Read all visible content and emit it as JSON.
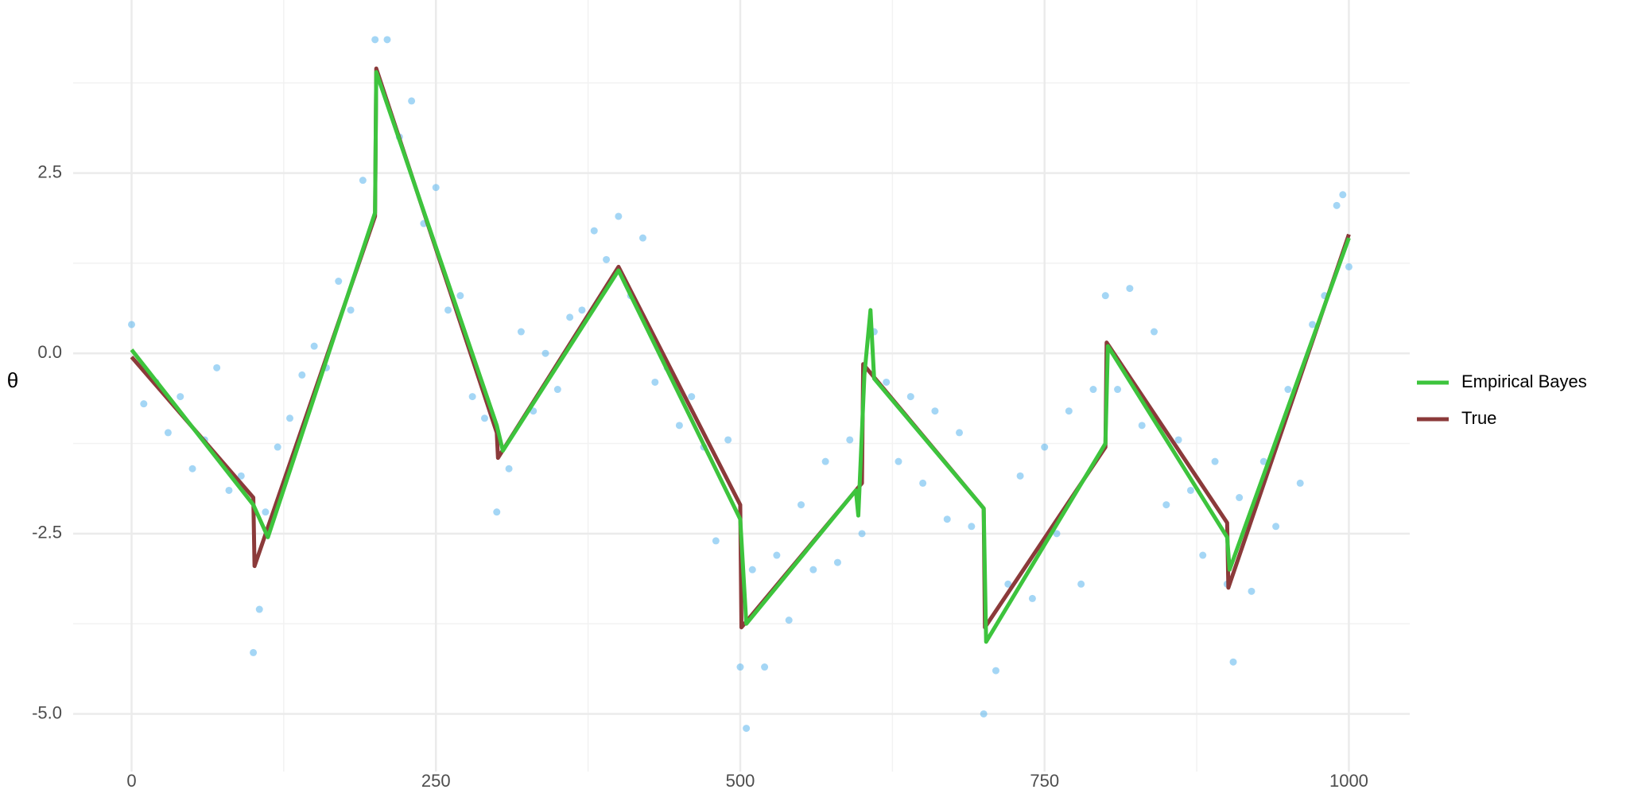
{
  "chart_data": {
    "type": "line",
    "ylabel": "θ",
    "xlim": [
      -48,
      1050
    ],
    "ylim": [
      -5.8,
      4.9
    ],
    "xticks": [
      0,
      250,
      500,
      750,
      1000
    ],
    "yticks": [
      {
        "value": -5,
        "label": "-5.0"
      },
      {
        "value": -2.5,
        "label": "-2.5"
      },
      {
        "value": 0,
        "label": "0.0"
      },
      {
        "value": 2.5,
        "label": "2.5"
      }
    ],
    "x_minor": [
      125,
      375,
      625,
      875
    ],
    "y_minor": [
      -3.75,
      -1.25,
      1.25,
      3.75
    ],
    "grid": true,
    "legend": "right",
    "points": {
      "color": "#5ab4ec",
      "opacity": 0.55,
      "x": [
        0,
        10,
        20,
        30,
        40,
        50,
        60,
        70,
        80,
        90,
        100,
        105,
        110,
        120,
        130,
        140,
        150,
        160,
        170,
        180,
        190,
        200,
        210,
        220,
        230,
        240,
        250,
        260,
        270,
        280,
        290,
        300,
        310,
        320,
        330,
        340,
        350,
        360,
        370,
        380,
        390,
        400,
        410,
        420,
        430,
        440,
        450,
        460,
        470,
        480,
        490,
        500,
        505,
        510,
        520,
        530,
        540,
        550,
        560,
        570,
        580,
        590,
        600,
        610,
        620,
        630,
        640,
        650,
        660,
        670,
        680,
        690,
        700,
        710,
        720,
        730,
        740,
        750,
        760,
        770,
        780,
        790,
        800,
        810,
        820,
        830,
        840,
        850,
        860,
        870,
        880,
        890,
        900,
        905,
        910,
        920,
        930,
        940,
        950,
        960,
        970,
        980,
        990,
        995,
        1000
      ],
      "y": [
        0.4,
        -0.7,
        -0.4,
        -1.1,
        -0.6,
        -1.6,
        -1.2,
        -0.2,
        -1.9,
        -1.7,
        -4.15,
        -3.55,
        -2.2,
        -1.3,
        -0.9,
        -0.3,
        0.1,
        -0.2,
        1.0,
        0.6,
        2.4,
        4.35,
        4.35,
        3.0,
        3.5,
        1.8,
        2.3,
        0.6,
        0.8,
        -0.6,
        -0.9,
        -2.2,
        -1.6,
        0.3,
        -0.8,
        0.0,
        -0.5,
        0.5,
        0.6,
        1.7,
        1.3,
        1.9,
        0.8,
        1.6,
        -0.4,
        -0.2,
        -1.0,
        -0.6,
        -1.3,
        -2.6,
        -1.2,
        -4.35,
        -5.2,
        -3.0,
        -4.35,
        -2.8,
        -3.7,
        -2.1,
        -3.0,
        -1.5,
        -2.9,
        -1.2,
        -2.5,
        0.3,
        -0.4,
        -1.5,
        -0.6,
        -1.8,
        -0.8,
        -2.3,
        -1.1,
        -2.4,
        -5.0,
        -4.4,
        -3.2,
        -1.7,
        -3.4,
        -1.3,
        -2.5,
        -0.8,
        -3.2,
        -0.5,
        0.8,
        -0.5,
        0.9,
        -1.0,
        0.3,
        -2.1,
        -1.2,
        -1.9,
        -2.8,
        -1.5,
        -3.2,
        -4.28,
        -2.0,
        -3.3,
        -1.5,
        -2.4,
        -0.5,
        -1.8,
        0.4,
        0.8,
        2.05,
        2.2,
        1.2
      ]
    },
    "series": [
      {
        "name": "Empirical Bayes",
        "color": "#3dc43d",
        "x": [
          0,
          100,
          112,
          200,
          201,
          300,
          305,
          400,
          500,
          505,
          595,
          597,
          602,
          607,
          610,
          700,
          702,
          800,
          802,
          900,
          902,
          1000
        ],
        "values": [
          0.05,
          -2.1,
          -2.55,
          1.95,
          3.9,
          -1.0,
          -1.35,
          1.15,
          -2.3,
          -3.75,
          -1.9,
          -2.25,
          -0.3,
          0.6,
          -0.35,
          -2.15,
          -4.0,
          -1.25,
          0.1,
          -2.55,
          -3.0,
          1.6
        ]
      },
      {
        "name": "True",
        "color": "#8b3a3a",
        "x": [
          0,
          100,
          101,
          200,
          201,
          300,
          301,
          400,
          500,
          501,
          600,
          601,
          700,
          701,
          800,
          801,
          900,
          901,
          1000
        ],
        "values": [
          -0.05,
          -2.0,
          -2.95,
          1.9,
          3.95,
          -1.1,
          -1.45,
          1.2,
          -2.1,
          -3.8,
          -1.8,
          -0.15,
          -2.15,
          -3.8,
          -1.3,
          0.15,
          -2.35,
          -3.25,
          1.65
        ]
      }
    ]
  }
}
